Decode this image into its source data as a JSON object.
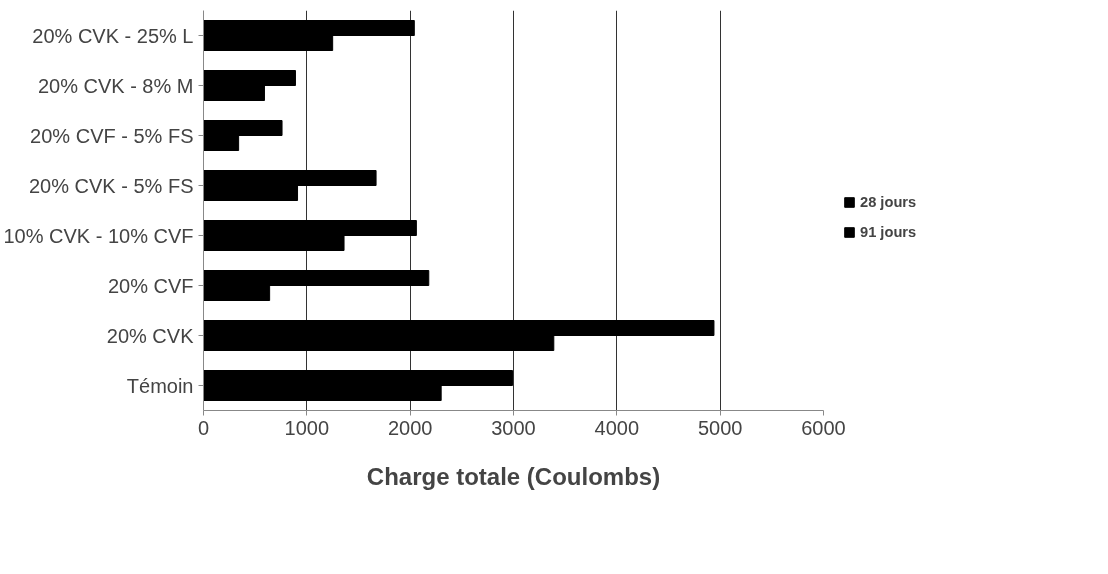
{
  "chart_data": {
    "type": "bar",
    "orientation": "horizontal",
    "xlabel": "Charge totale (Coulombs)",
    "categories": [
      "20% CVK - 25% L",
      "20% CVK - 8% M",
      "20% CVF - 5% FS",
      "20% CVK - 5% FS",
      "10% CVK - 10% CVF",
      "20% CVF",
      "20% CVK",
      "Témoin"
    ],
    "series": [
      {
        "name": "28 jours",
        "color": "#000000",
        "values": [
          2040,
          890,
          760,
          1670,
          2060,
          2180,
          4940,
          2990
        ]
      },
      {
        "name": "91 jours",
        "color": "#000000",
        "values": [
          1250,
          590,
          340,
          910,
          1360,
          640,
          3390,
          2300
        ]
      }
    ],
    "xlim": [
      0,
      6000
    ],
    "xticks": [
      0,
      1000,
      2000,
      3000,
      4000,
      5000,
      6000
    ],
    "grid": "x",
    "legend": "right"
  }
}
